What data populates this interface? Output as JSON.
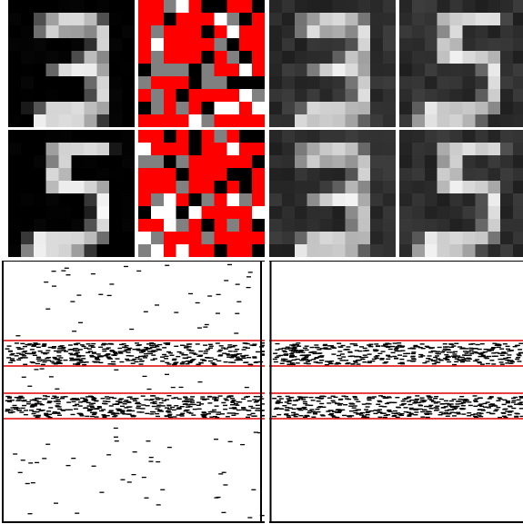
{
  "figure": {
    "tiles": [
      {
        "id": "t1",
        "kind": "digit",
        "digit": "3"
      },
      {
        "id": "t2",
        "kind": "corrupted",
        "digit": "3"
      },
      {
        "id": "t3",
        "kind": "reconstruction",
        "digit": "3"
      },
      {
        "id": "t4",
        "kind": "reconstruction",
        "digit": "5"
      },
      {
        "id": "t5",
        "kind": "digit",
        "digit": "5"
      },
      {
        "id": "t6",
        "kind": "corrupted",
        "digit": "5"
      },
      {
        "id": "t7",
        "kind": "reconstruction",
        "digit": "3"
      },
      {
        "id": "t8",
        "kind": "reconstruction",
        "digit": "5"
      }
    ],
    "colors": {
      "highlight_band": "#e00000",
      "corruption": "#ff0000",
      "spike": "#000000"
    },
    "raster": {
      "bands": 2,
      "band_count_left": 2,
      "band_count_right": 2
    }
  }
}
